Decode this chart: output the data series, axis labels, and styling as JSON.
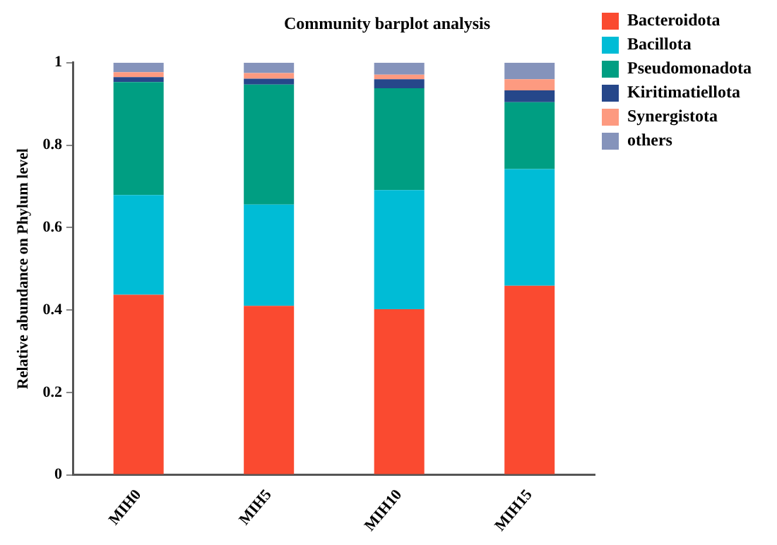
{
  "chart_data": {
    "type": "bar",
    "title": "Community barplot analysis",
    "ylabel": "Relative abundance on Phylum level",
    "categories": [
      "MIH0",
      "MIH5",
      "MIH10",
      "MIH15"
    ],
    "stacked": true,
    "ylim": [
      0,
      1
    ],
    "yticks": [
      0,
      0.2,
      0.4,
      0.6,
      0.8,
      1
    ],
    "grid": false,
    "legend": "right",
    "series": [
      {
        "name": "Bacteroidota",
        "color": "#fa4a30",
        "values": [
          0.437,
          0.41,
          0.402,
          0.459
        ]
      },
      {
        "name": "Bacillota",
        "color": "#00bcd6",
        "values": [
          0.242,
          0.246,
          0.289,
          0.283
        ]
      },
      {
        "name": "Pseudomonadota",
        "color": "#009e82",
        "values": [
          0.274,
          0.291,
          0.247,
          0.162
        ]
      },
      {
        "name": "Kiritimatiellota",
        "color": "#26478a",
        "values": [
          0.012,
          0.014,
          0.022,
          0.029
        ]
      },
      {
        "name": "Synergistota",
        "color": "#fd9a80",
        "values": [
          0.012,
          0.014,
          0.011,
          0.027
        ]
      },
      {
        "name": "others",
        "color": "#8593bb",
        "values": [
          0.023,
          0.025,
          0.029,
          0.04
        ]
      }
    ]
  }
}
